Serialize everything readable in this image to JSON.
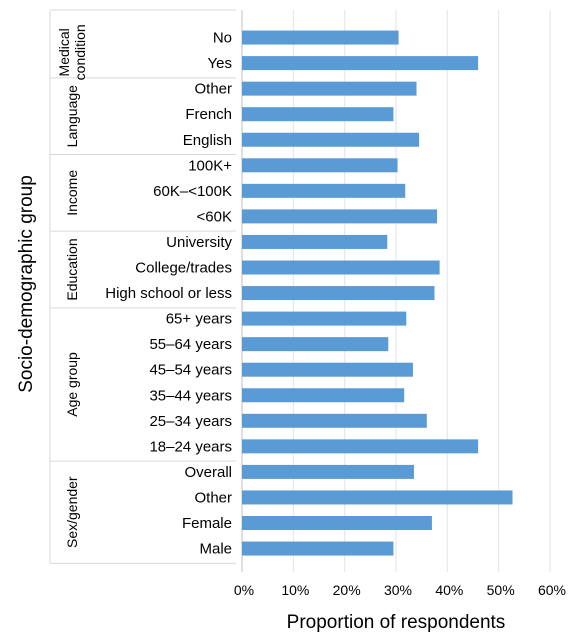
{
  "chart_data": {
    "type": "bar",
    "orientation": "horizontal",
    "xlabel": "Proportion of respondents",
    "ylabel": "Socio-demographic group",
    "xlim": [
      0,
      60
    ],
    "xticks": [
      "0%",
      "10%",
      "20%",
      "30%",
      "40%",
      "50%",
      "60%"
    ],
    "grid": "vertical",
    "color": "#5b9bd5",
    "groups": [
      {
        "name": "Medical condition",
        "name_lines": [
          "Medical",
          "condition"
        ],
        "categories": [
          "No",
          "Yes"
        ],
        "values": [
          30.5,
          46
        ]
      },
      {
        "name": "Language",
        "name_lines": [
          "Language"
        ],
        "categories": [
          "Other",
          "French",
          "English"
        ],
        "values": [
          34,
          29.5,
          34.5
        ]
      },
      {
        "name": "Income",
        "name_lines": [
          "Income"
        ],
        "categories": [
          "100K+",
          "60K–<100K",
          "<60K"
        ],
        "values": [
          30.3,
          31.8,
          38
        ]
      },
      {
        "name": "Education",
        "name_lines": [
          "Education"
        ],
        "categories": [
          "University",
          "College/trades",
          "High school or less"
        ],
        "values": [
          28.3,
          38.5,
          37.5
        ]
      },
      {
        "name": "Age group",
        "name_lines": [
          "Age group"
        ],
        "categories": [
          "65+ years",
          "55–64 years",
          "45–54 years",
          "35–44 years",
          "25–34 years",
          "18–24 years"
        ],
        "values": [
          32,
          28.5,
          33.3,
          31.6,
          36,
          46
        ]
      },
      {
        "name": "Sex/gender",
        "name_lines": [
          "Sex/gender"
        ],
        "categories": [
          "Overall",
          "Other",
          "Female",
          "Male"
        ],
        "values": [
          33.5,
          52.7,
          37,
          29.5
        ]
      }
    ]
  }
}
